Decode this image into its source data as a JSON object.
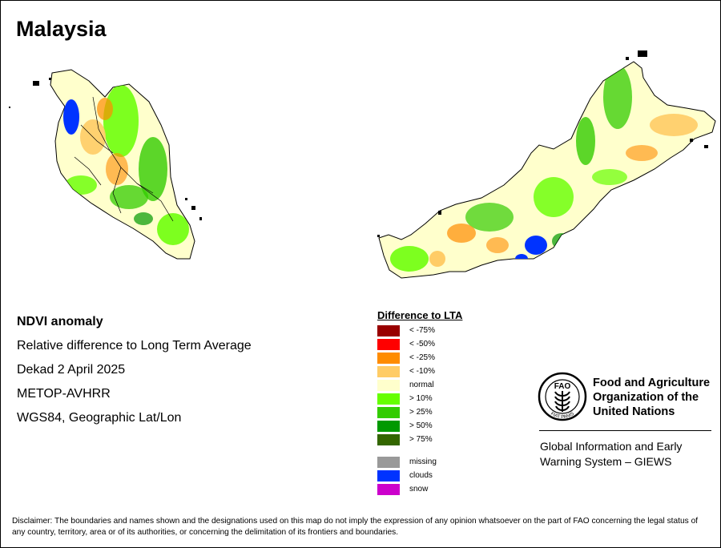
{
  "title": "Malaysia",
  "info": {
    "product": "NDVI anomaly",
    "description": "Relative difference to Long Term Average",
    "period": "Dekad 2 April 2025",
    "sensor": "METOP-AVHRR",
    "projection": "WGS84, Geographic Lat/Lon"
  },
  "legend": {
    "title": "Difference to LTA",
    "classes": [
      {
        "label": "< -75%",
        "color": "#990000"
      },
      {
        "label": "< -50%",
        "color": "#ff0000"
      },
      {
        "label": "< -25%",
        "color": "#ff8c00"
      },
      {
        "label": "< -10%",
        "color": "#ffcc66"
      },
      {
        "label": "normal",
        "color": "#ffffcc"
      },
      {
        "label": "> 10%",
        "color": "#66ff00"
      },
      {
        "label": "> 25%",
        "color": "#33cc00"
      },
      {
        "label": "> 50%",
        "color": "#009900"
      },
      {
        "label": "> 75%",
        "color": "#336600"
      }
    ],
    "special": [
      {
        "label": "missing",
        "color": "#999999"
      },
      {
        "label": "clouds",
        "color": "#0033ff"
      },
      {
        "label": "snow",
        "color": "#cc00cc"
      }
    ]
  },
  "organization": {
    "line1": "Food and Agriculture",
    "line2": "Organization of the",
    "line3": "United Nations",
    "logo_text": "FAO",
    "logo_motto": "FIAT PANIS",
    "giews_line1": "Global Information and Early",
    "giews_line2": "Warning System – GIEWS"
  },
  "disclaimer": "Disclaimer: The boundaries and names shown and the designations used on this map do not imply the expression of any opinion whatsoever on the part of FAO concerning the legal status of any country, territory, area or of its authorities, or concerning the delimitation of its frontiers and boundaries."
}
